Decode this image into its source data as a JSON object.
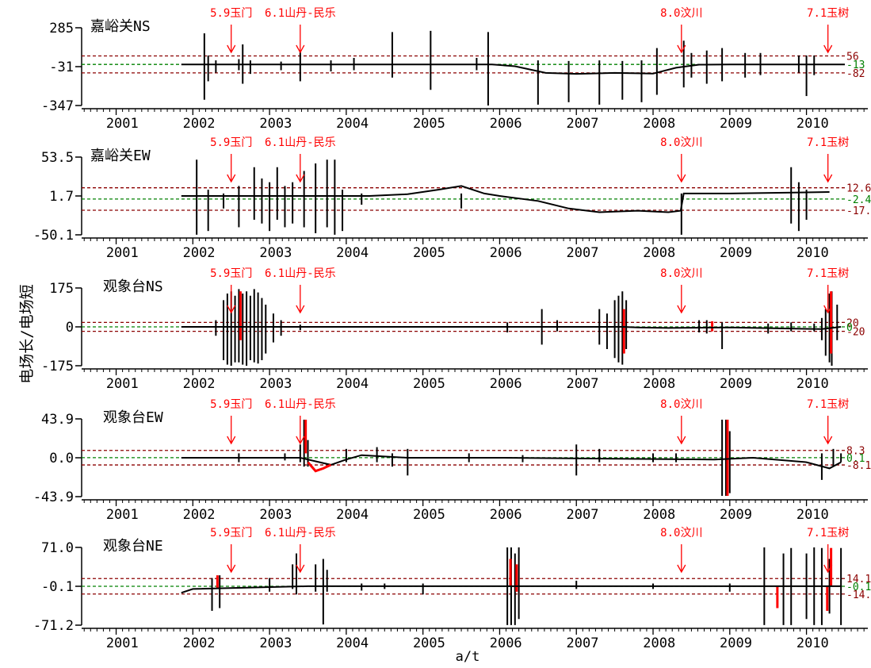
{
  "xlabel": "a/t",
  "ylabel": "电场长/电场短",
  "years": [
    "2001",
    "2002",
    "2003",
    "2004",
    "2005",
    "2006",
    "2007",
    "2008",
    "2009",
    "2010"
  ],
  "events": [
    {
      "label": "5.9玉门",
      "t": 2002.5
    },
    {
      "label": "6.1山丹-民乐",
      "t": 2003.4
    },
    {
      "label": "8.0汶川",
      "t": 2008.37
    },
    {
      "label": "7.1玉树",
      "t": 2010.28
    }
  ],
  "colors": {
    "trace": "#000000",
    "anomaly": "#ff0000",
    "mean_line": "#008000",
    "threshold_line": "#8b0000",
    "event_text": "#ff0000"
  },
  "chart_data": [
    {
      "type": "line",
      "title": "嘉峪关NS",
      "yticks": [
        "285",
        "-31",
        "-347"
      ],
      "ylim": [
        -347,
        285
      ],
      "upper": {
        "label": "56",
        "value": 56
      },
      "mean": {
        "label": "-13",
        "value": -13
      },
      "lower": {
        "label": "-82",
        "value": -82
      },
      "spikes": [
        [
          2002.15,
          240,
          -300
        ],
        [
          2002.2,
          60,
          -150
        ],
        [
          2002.3,
          20,
          -80
        ],
        [
          2002.6,
          30,
          -60
        ],
        [
          2002.65,
          150,
          -170
        ],
        [
          2002.75,
          20,
          -90
        ],
        [
          2003.15,
          10,
          -60
        ],
        [
          2003.4,
          100,
          -150
        ],
        [
          2003.8,
          20,
          -70
        ],
        [
          2004.1,
          40,
          -60
        ],
        [
          2004.6,
          250,
          -120
        ],
        [
          2005.1,
          260,
          -220
        ],
        [
          2005.7,
          40,
          -60
        ],
        [
          2005.85,
          250,
          -347
        ],
        [
          2006.5,
          20,
          -340
        ],
        [
          2006.9,
          15,
          -320
        ],
        [
          2007.3,
          20,
          -340
        ],
        [
          2007.6,
          15,
          -300
        ],
        [
          2007.85,
          20,
          -320
        ],
        [
          2008.05,
          120,
          -260
        ],
        [
          2008.4,
          180,
          -200
        ],
        [
          2008.5,
          80,
          -120
        ],
        [
          2008.7,
          100,
          -170
        ],
        [
          2008.9,
          120,
          -150
        ],
        [
          2009.2,
          80,
          -120
        ],
        [
          2009.4,
          80,
          -100
        ],
        [
          2009.9,
          60,
          -80
        ],
        [
          2010.0,
          60,
          -270
        ],
        [
          2010.1,
          60,
          -100
        ]
      ],
      "anomaly_spikes": [],
      "trace": [
        [
          2001.85,
          -13
        ],
        [
          2005.7,
          -13
        ],
        [
          2005.9,
          -13
        ],
        [
          2006.2,
          -28
        ],
        [
          2006.6,
          -82
        ],
        [
          2007.0,
          -90
        ],
        [
          2007.5,
          -82
        ],
        [
          2008.0,
          -88
        ],
        [
          2008.3,
          -40
        ],
        [
          2008.6,
          -15
        ],
        [
          2009.0,
          -13
        ],
        [
          2010.5,
          -13
        ]
      ]
    },
    {
      "type": "line",
      "title": "嘉峪关EW",
      "yticks": [
        "53.5",
        "1.7",
        "-50.1"
      ],
      "ylim": [
        -50.1,
        53.5
      ],
      "upper": {
        "label": "12.6",
        "value": 12.6
      },
      "mean": {
        "label": "-2.4",
        "value": -2.4
      },
      "lower": {
        "label": "-17.3",
        "value": -17.3
      },
      "spikes": [
        [
          2002.05,
          50,
          -50
        ],
        [
          2002.2,
          10,
          -45
        ],
        [
          2002.4,
          5,
          -15
        ],
        [
          2002.6,
          15,
          -40
        ],
        [
          2002.8,
          40,
          -30
        ],
        [
          2002.9,
          25,
          -35
        ],
        [
          2003.0,
          20,
          -45
        ],
        [
          2003.1,
          40,
          -30
        ],
        [
          2003.2,
          15,
          -40
        ],
        [
          2003.3,
          20,
          -35
        ],
        [
          2003.45,
          35,
          -40
        ],
        [
          2003.6,
          45,
          -48
        ],
        [
          2003.75,
          50,
          -40
        ],
        [
          2003.85,
          50,
          -50
        ],
        [
          2003.95,
          10,
          -45
        ],
        [
          2004.2,
          5,
          -10
        ],
        [
          2005.5,
          5,
          -15
        ],
        [
          2008.37,
          5,
          -50
        ],
        [
          2009.8,
          40,
          -35
        ],
        [
          2009.9,
          20,
          -45
        ],
        [
          2010.0,
          10,
          -30
        ]
      ],
      "anomaly_spikes": [],
      "trace": [
        [
          2001.85,
          1.7
        ],
        [
          2003.9,
          1.7
        ],
        [
          2004.3,
          1.7
        ],
        [
          2004.8,
          4
        ],
        [
          2005.2,
          10
        ],
        [
          2005.5,
          15
        ],
        [
          2005.8,
          5
        ],
        [
          2006.0,
          1.7
        ],
        [
          2006.5,
          -5
        ],
        [
          2006.9,
          -15
        ],
        [
          2007.3,
          -20
        ],
        [
          2007.8,
          -18
        ],
        [
          2008.2,
          -20
        ],
        [
          2008.36,
          -18
        ],
        [
          2008.4,
          5
        ],
        [
          2009.0,
          5
        ],
        [
          2010.3,
          7
        ]
      ]
    },
    {
      "type": "line",
      "title": "观象台NS",
      "yticks": [
        "175",
        "0",
        "-175"
      ],
      "ylim": [
        -175,
        175
      ],
      "upper": {
        "label": "20",
        "value": 20
      },
      "mean": {
        "label": "0",
        "value": 0
      },
      "lower": {
        "label": "-20",
        "value": -20
      },
      "spikes": [
        [
          2002.3,
          30,
          -40
        ],
        [
          2002.4,
          120,
          -150
        ],
        [
          2002.45,
          150,
          -170
        ],
        [
          2002.5,
          160,
          -175
        ],
        [
          2002.55,
          140,
          -160
        ],
        [
          2002.6,
          170,
          -160
        ],
        [
          2002.65,
          150,
          -170
        ],
        [
          2002.7,
          160,
          -175
        ],
        [
          2002.75,
          140,
          -150
        ],
        [
          2002.8,
          170,
          -160
        ],
        [
          2002.85,
          155,
          -165
        ],
        [
          2002.9,
          130,
          -150
        ],
        [
          2002.95,
          100,
          -120
        ],
        [
          2003.05,
          60,
          -70
        ],
        [
          2003.15,
          30,
          -40
        ],
        [
          2003.4,
          10,
          -15
        ],
        [
          2006.1,
          20,
          -25
        ],
        [
          2006.55,
          80,
          -80
        ],
        [
          2006.75,
          30,
          -20
        ],
        [
          2007.3,
          80,
          -80
        ],
        [
          2007.4,
          60,
          -100
        ],
        [
          2007.5,
          120,
          -140
        ],
        [
          2007.55,
          140,
          -160
        ],
        [
          2007.6,
          160,
          -170
        ],
        [
          2007.65,
          120,
          -100
        ],
        [
          2008.6,
          30,
          -25
        ],
        [
          2008.7,
          30,
          -30
        ],
        [
          2008.9,
          20,
          -100
        ],
        [
          2009.5,
          15,
          -30
        ],
        [
          2009.8,
          20,
          -20
        ],
        [
          2010.1,
          15,
          -20
        ],
        [
          2010.2,
          40,
          -60
        ],
        [
          2010.25,
          80,
          -130
        ],
        [
          2010.3,
          150,
          -160
        ],
        [
          2010.33,
          160,
          -175
        ],
        [
          2010.4,
          100,
          -60
        ]
      ],
      "anomaly_spikes": [
        [
          2002.6,
          160,
          -60
        ],
        [
          2007.6,
          80,
          -120
        ],
        [
          2008.75,
          25,
          -20
        ],
        [
          2010.3,
          160,
          -120
        ]
      ],
      "trace": [
        [
          2001.85,
          0
        ],
        [
          2007.6,
          0
        ],
        [
          2007.8,
          -3
        ],
        [
          2008.2,
          -5
        ],
        [
          2009.0,
          -3
        ],
        [
          2010.2,
          -10
        ],
        [
          2010.45,
          0
        ]
      ]
    },
    {
      "type": "line",
      "title": "观象台EW",
      "yticks": [
        "43.9",
        "0.0",
        "-43.9"
      ],
      "ylim": [
        -43.9,
        43.9
      ],
      "upper": {
        "label": "8.3",
        "value": 8.3
      },
      "mean": {
        "label": "0.1",
        "value": 0.1
      },
      "lower": {
        "label": "-8.1",
        "value": -8.1
      },
      "spikes": [
        [
          2002.6,
          5,
          -5
        ],
        [
          2003.2,
          5,
          -3
        ],
        [
          2003.4,
          15,
          -5
        ],
        [
          2003.45,
          43,
          -10
        ],
        [
          2003.5,
          20,
          -10
        ],
        [
          2004.0,
          10,
          -5
        ],
        [
          2004.4,
          12,
          -5
        ],
        [
          2004.6,
          5,
          -10
        ],
        [
          2004.8,
          10,
          -20
        ],
        [
          2005.6,
          5,
          -5
        ],
        [
          2006.3,
          3,
          -5
        ],
        [
          2007.0,
          15,
          -20
        ],
        [
          2007.3,
          10,
          -5
        ],
        [
          2008.0,
          5,
          -5
        ],
        [
          2008.3,
          5,
          -5
        ],
        [
          2008.9,
          43,
          -43
        ],
        [
          2008.95,
          43,
          -43
        ],
        [
          2009.0,
          30,
          -40
        ],
        [
          2010.2,
          5,
          -25
        ],
        [
          2010.35,
          10,
          -10
        ],
        [
          2010.45,
          5,
          -5
        ]
      ],
      "anomaly_spikes": [
        [
          2003.45,
          43,
          5
        ],
        [
          2008.95,
          43,
          -43
        ]
      ],
      "anomaly_trace": [
        [
          2003.5,
          -5
        ],
        [
          2003.6,
          -15
        ],
        [
          2003.7,
          -12
        ],
        [
          2003.8,
          -8
        ]
      ],
      "trace": [
        [
          2001.85,
          0
        ],
        [
          2003.4,
          0
        ],
        [
          2003.8,
          -8
        ],
        [
          2004.0,
          -2
        ],
        [
          2004.2,
          3
        ],
        [
          2004.8,
          0
        ],
        [
          2006.0,
          0
        ],
        [
          2008.8,
          -2
        ],
        [
          2009.3,
          0
        ],
        [
          2010.0,
          -5
        ],
        [
          2010.3,
          -12
        ],
        [
          2010.45,
          -5
        ]
      ]
    },
    {
      "type": "line",
      "title": "观象台NE",
      "yticks": [
        "71.0",
        "-0.1",
        "-71.2"
      ],
      "ylim": [
        -71.2,
        71.0
      ],
      "upper": {
        "label": "14.1",
        "value": 14.1
      },
      "mean": {
        "label": "-0.1",
        "value": -0.1
      },
      "lower": {
        "label": "-14.3",
        "value": -14.3
      },
      "spikes": [
        [
          2002.25,
          15,
          -45
        ],
        [
          2002.35,
          20,
          -40
        ],
        [
          2003.0,
          15,
          -10
        ],
        [
          2003.3,
          40,
          -5
        ],
        [
          2003.35,
          60,
          -15
        ],
        [
          2003.6,
          40,
          -10
        ],
        [
          2003.7,
          50,
          -70
        ],
        [
          2003.75,
          30,
          -10
        ],
        [
          2004.2,
          5,
          -8
        ],
        [
          2004.5,
          5,
          -5
        ],
        [
          2005.0,
          5,
          -15
        ],
        [
          2006.1,
          71,
          -71
        ],
        [
          2006.15,
          71,
          -71
        ],
        [
          2006.2,
          60,
          -71
        ],
        [
          2006.25,
          71,
          -60
        ],
        [
          2007.0,
          10,
          -5
        ],
        [
          2008.0,
          5,
          -5
        ],
        [
          2009.0,
          5,
          -10
        ],
        [
          2009.45,
          71,
          -71
        ],
        [
          2009.7,
          60,
          -71
        ],
        [
          2009.8,
          70,
          -71
        ],
        [
          2010.0,
          60,
          -60
        ],
        [
          2010.1,
          71,
          -71
        ],
        [
          2010.2,
          70,
          -71
        ],
        [
          2010.3,
          50,
          -50
        ],
        [
          2010.45,
          70,
          -71
        ]
      ],
      "anomaly_spikes": [
        [
          2002.3,
          20,
          -5
        ],
        [
          2006.12,
          50,
          0
        ],
        [
          2006.2,
          40,
          -10
        ],
        [
          2009.6,
          0,
          -40
        ],
        [
          2010.25,
          0,
          -45
        ],
        [
          2010.3,
          70,
          0
        ]
      ],
      "trace": [
        [
          2001.85,
          -12
        ],
        [
          2002.0,
          -5
        ],
        [
          2003.5,
          0
        ],
        [
          2005.9,
          0
        ],
        [
          2006.3,
          0
        ],
        [
          2009.4,
          0
        ],
        [
          2010.45,
          0
        ]
      ]
    }
  ]
}
